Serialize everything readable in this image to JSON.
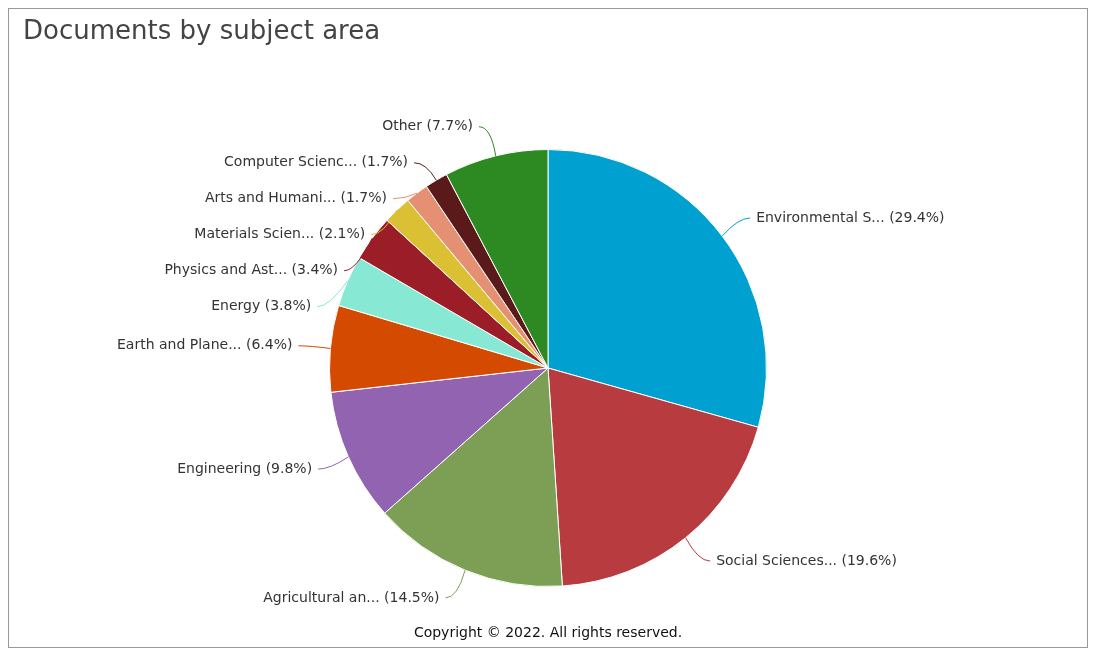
{
  "chart_data": {
    "type": "pie",
    "title": "Documents by subject area",
    "categories": [
      "Environmental S...",
      "Social Sciences...",
      "Agricultural an...",
      "Engineering",
      "Earth and Plane...",
      "Energy",
      "Physics and Ast...",
      "Materials Scien...",
      "Arts and Humani...",
      "Computer Scienc...",
      "Other"
    ],
    "values": [
      29.4,
      19.6,
      14.5,
      9.8,
      6.4,
      3.8,
      3.4,
      2.1,
      1.7,
      1.7,
      7.7
    ],
    "value_labels": [
      "(29.4%)",
      "(19.6%)",
      "(14.5%)",
      "(9.8%)",
      "(6.4%)",
      "(3.8%)",
      "(3.4%)",
      "(2.1%)",
      "(1.7%)",
      "(1.7%)",
      "(7.7%)"
    ],
    "colors": [
      "#00a0d0",
      "#b83b40",
      "#7d9e55",
      "#9263b0",
      "#d44a00",
      "#87e8d4",
      "#9b1d27",
      "#dcc034",
      "#e59073",
      "#5a1a1a",
      "#2d8a22"
    ],
    "legend": false,
    "annotations": [
      "Copyright © 2022. All rights reserved."
    ]
  }
}
